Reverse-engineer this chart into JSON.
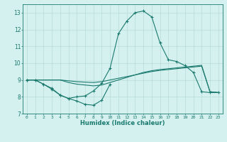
{
  "xlabel": "Humidex (Indice chaleur)",
  "x_values": [
    0,
    1,
    2,
    3,
    4,
    5,
    6,
    7,
    8,
    9,
    10,
    11,
    12,
    13,
    14,
    15,
    16,
    17,
    18,
    19,
    20,
    21,
    22,
    23
  ],
  "line1_y": [
    9.0,
    9.0,
    8.75,
    8.5,
    8.1,
    7.9,
    7.75,
    7.55,
    7.5,
    7.8,
    8.75,
    null,
    null,
    null,
    null,
    null,
    null,
    null,
    null,
    null,
    null,
    null,
    null,
    null
  ],
  "line2_y": [
    9.0,
    9.0,
    8.75,
    8.45,
    8.1,
    7.9,
    8.0,
    8.05,
    8.35,
    8.8,
    9.7,
    11.75,
    12.5,
    13.0,
    13.1,
    12.75,
    11.2,
    10.2,
    10.1,
    9.85,
    9.45,
    8.3,
    8.25,
    8.25
  ],
  "line3_y": [
    9.0,
    9.0,
    9.0,
    9.0,
    9.0,
    8.95,
    8.9,
    8.87,
    8.85,
    8.9,
    9.0,
    9.1,
    9.2,
    9.3,
    9.4,
    9.5,
    9.57,
    9.62,
    9.67,
    9.72,
    9.77,
    9.82,
    8.3,
    8.25
  ],
  "line4_y": [
    9.0,
    9.0,
    9.0,
    9.0,
    9.0,
    8.85,
    8.75,
    8.7,
    8.65,
    8.7,
    8.85,
    9.0,
    9.15,
    9.3,
    9.45,
    9.55,
    9.62,
    9.67,
    9.72,
    9.77,
    9.82,
    9.87,
    8.3,
    8.25
  ],
  "color": "#1a7a6e",
  "bg_color": "#d4f0ef",
  "grid_color": "#b8dcd9",
  "ylim": [
    7.0,
    13.5
  ],
  "xlim": [
    -0.5,
    23.5
  ],
  "yticks": [
    7,
    8,
    9,
    10,
    11,
    12,
    13
  ],
  "xticks": [
    0,
    1,
    2,
    3,
    4,
    5,
    6,
    7,
    8,
    9,
    10,
    11,
    12,
    13,
    14,
    15,
    16,
    17,
    18,
    19,
    20,
    21,
    22,
    23
  ]
}
